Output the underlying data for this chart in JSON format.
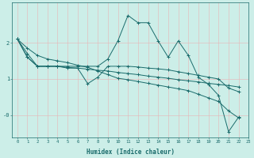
{
  "background_color": "#cceee8",
  "grid_color": "#e8b4b4",
  "line_color": "#1a6b6b",
  "xlabel": "Humidex (Indice chaleur)",
  "xlim": [
    -0.5,
    23.5
  ],
  "ylim": [
    -0.6,
    3.1
  ],
  "x_ticks": [
    0,
    1,
    2,
    3,
    4,
    5,
    6,
    7,
    8,
    9,
    10,
    11,
    12,
    13,
    14,
    15,
    16,
    17,
    18,
    19,
    20,
    21,
    22,
    23
  ],
  "y_ticks": [
    0.0,
    1.0,
    2.0
  ],
  "y_tick_labels": [
    "-0",
    "1",
    "2"
  ],
  "series": [
    [
      2.1,
      1.7,
      1.35,
      1.35,
      1.35,
      1.35,
      1.35,
      1.35,
      1.35,
      1.55,
      2.05,
      2.75,
      2.55,
      2.55,
      2.05,
      1.6,
      2.05,
      1.65,
      1.05,
      0.85,
      0.55,
      -0.45,
      -0.05
    ],
    [
      2.1,
      1.6,
      1.35,
      1.35,
      1.35,
      1.3,
      1.3,
      0.87,
      1.05,
      1.35,
      1.35,
      1.35,
      1.33,
      1.3,
      1.28,
      1.25,
      1.2,
      1.15,
      1.1,
      1.05,
      1.0,
      0.75,
      0.65
    ],
    [
      2.1,
      1.6,
      1.35,
      1.35,
      1.35,
      1.32,
      1.3,
      1.27,
      1.24,
      1.22,
      1.18,
      1.15,
      1.12,
      1.08,
      1.05,
      1.02,
      0.98,
      0.95,
      0.92,
      0.88,
      0.85,
      0.82,
      0.78
    ],
    [
      2.1,
      1.85,
      1.65,
      1.55,
      1.5,
      1.45,
      1.38,
      1.32,
      1.22,
      1.12,
      1.02,
      0.98,
      0.93,
      0.88,
      0.83,
      0.78,
      0.73,
      0.68,
      0.58,
      0.48,
      0.38,
      0.12,
      -0.07
    ]
  ]
}
